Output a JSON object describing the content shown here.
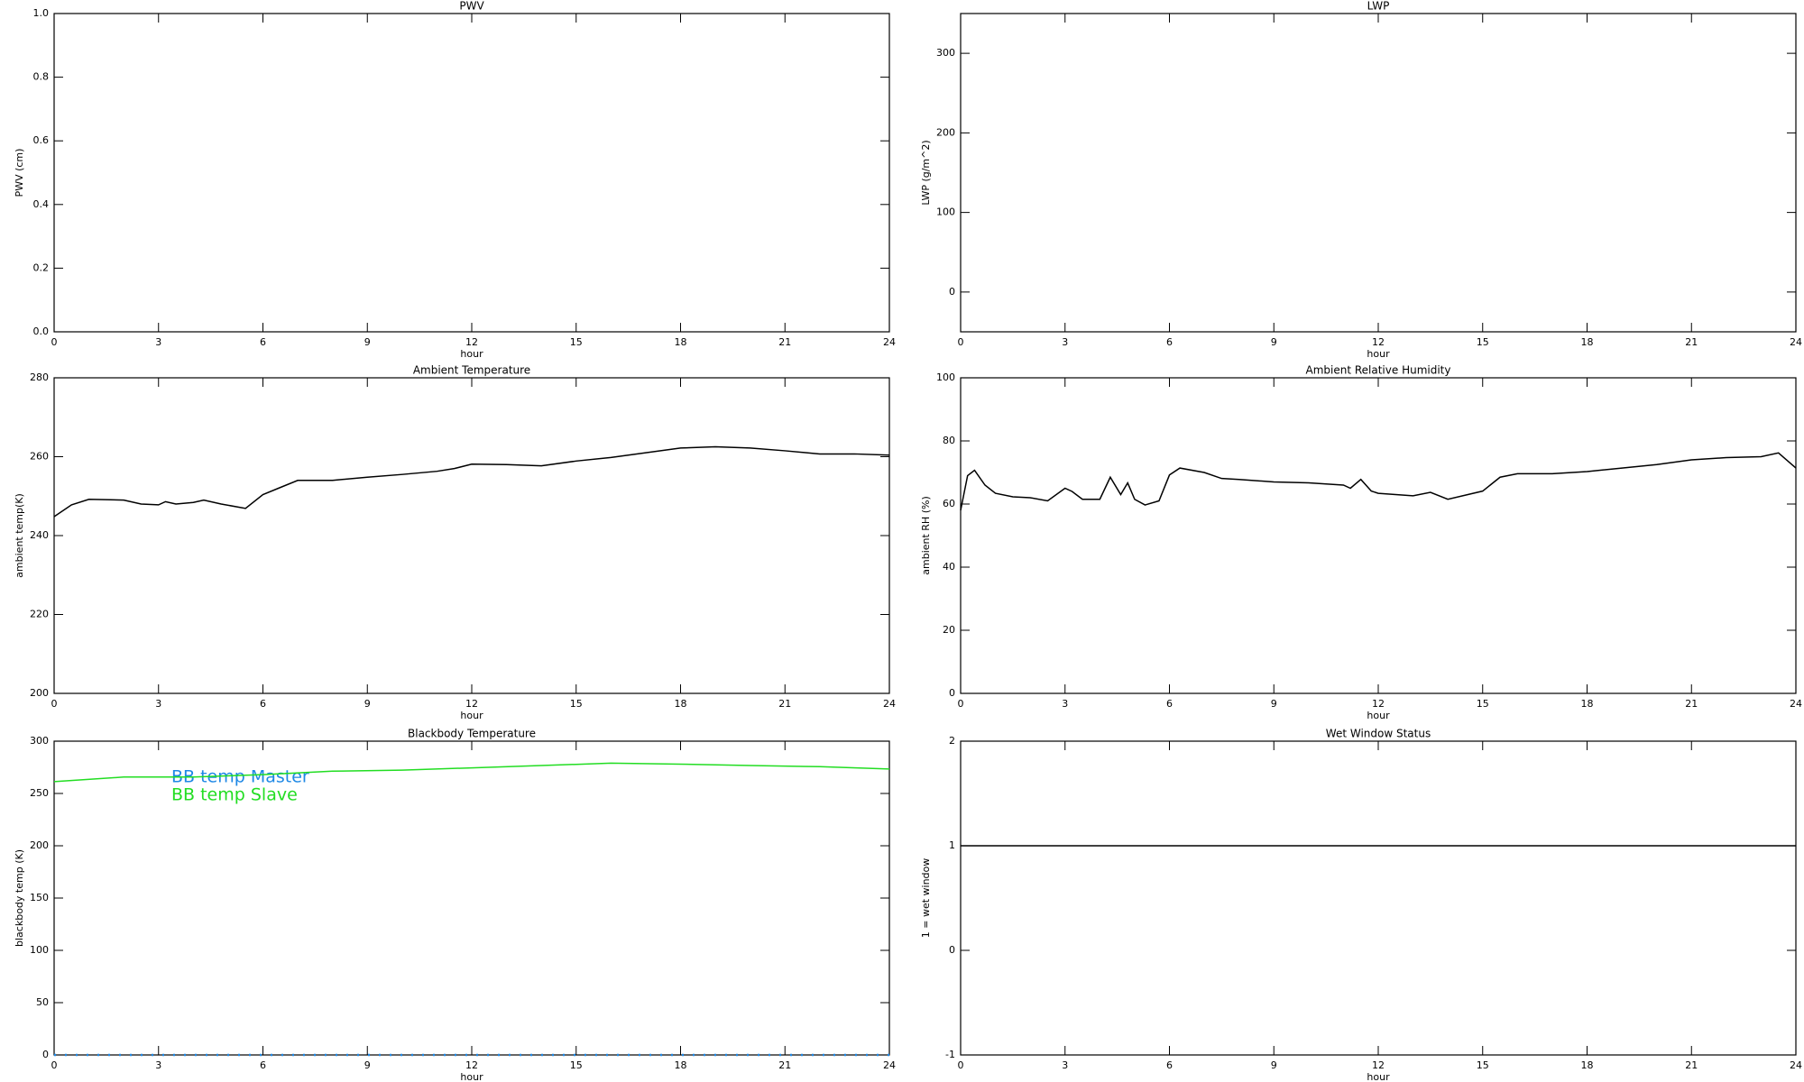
{
  "chart_data": [
    {
      "type": "line",
      "title": "PWV",
      "xlabel": "hour",
      "ylabel": "PWV (cm)",
      "xlim": [
        0,
        24
      ],
      "xticks": [
        0,
        3,
        6,
        9,
        12,
        15,
        18,
        21,
        24
      ],
      "ylim": [
        0,
        1
      ],
      "yticks": [
        {
          "value": 0,
          "label": "0.0"
        },
        0.2,
        0.4,
        0.6,
        0.8,
        {
          "value": 1,
          "label": "1.0"
        }
      ],
      "series": []
    },
    {
      "type": "line",
      "title": "LWP",
      "xlabel": "hour",
      "ylabel": "LWP (g/m^2)",
      "xlim": [
        0,
        24
      ],
      "xticks": [
        0,
        3,
        6,
        9,
        12,
        15,
        18,
        21,
        24
      ],
      "ylim": [
        -50,
        350
      ],
      "yticks": [
        0,
        100,
        200,
        300
      ],
      "series": []
    },
    {
      "type": "line",
      "title": "Ambient Temperature",
      "xlabel": "hour",
      "ylabel": "ambient temp(K)",
      "xlim": [
        0,
        24
      ],
      "xticks": [
        0,
        3,
        6,
        9,
        12,
        15,
        18,
        21,
        24
      ],
      "ylim": [
        200,
        280
      ],
      "yticks": [
        200,
        220,
        240,
        260,
        280
      ],
      "series": [
        {
          "color": "#000000",
          "x": [
            0,
            0.5,
            1,
            2,
            2.5,
            3,
            3.2,
            3.5,
            4,
            4.3,
            4.8,
            5.5,
            6,
            6.5,
            7,
            8,
            9,
            10,
            11,
            11.5,
            12,
            13,
            14,
            15,
            16,
            17,
            18,
            19,
            20,
            21,
            22,
            23,
            24
          ],
          "values": [
            244.8,
            247.8,
            249.2,
            249,
            248,
            247.8,
            248.6,
            248,
            248.4,
            249,
            248,
            246.9,
            250.4,
            252.2,
            254,
            254,
            254.8,
            255.5,
            256.3,
            257,
            258.1,
            258,
            257.7,
            258.9,
            259.8,
            261,
            262.2,
            262.5,
            262.2,
            261.5,
            260.7,
            260.7,
            260.4
          ]
        }
      ]
    },
    {
      "type": "line",
      "title": "Ambient Relative Humidity",
      "xlabel": "hour",
      "ylabel": "ambient RH (%)",
      "xlim": [
        0,
        24
      ],
      "xticks": [
        0,
        3,
        6,
        9,
        12,
        15,
        18,
        21,
        24
      ],
      "ylim": [
        0,
        100
      ],
      "yticks": [
        0,
        20,
        40,
        60,
        80,
        100
      ],
      "series": [
        {
          "color": "#000000",
          "x": [
            0,
            0.2,
            0.4,
            0.7,
            1,
            1.5,
            2,
            2.5,
            3,
            3.2,
            3.5,
            4,
            4.3,
            4.6,
            4.8,
            5,
            5.3,
            5.7,
            6,
            6.3,
            7,
            7.5,
            8,
            9,
            10,
            11,
            11.2,
            11.5,
            11.8,
            12,
            13,
            13.5,
            14,
            15,
            15.5,
            16,
            17,
            18,
            19,
            20,
            21,
            22,
            23,
            23.5,
            24
          ],
          "values": [
            58,
            69,
            70.7,
            66,
            63.4,
            62.3,
            62,
            61,
            65,
            64,
            61.5,
            61.5,
            68.5,
            63,
            66.7,
            61.5,
            59.7,
            61,
            69.2,
            71.4,
            70,
            68.1,
            67.8,
            67,
            66.7,
            66,
            65,
            67.8,
            64.1,
            63.4,
            62.6,
            63.7,
            61.5,
            64.1,
            68.5,
            69.6,
            69.6,
            70.3,
            71.4,
            72.5,
            74,
            74.7,
            75,
            76.2,
            71.4
          ]
        }
      ]
    },
    {
      "type": "line",
      "title": "Blackbody Temperature",
      "xlabel": "hour",
      "ylabel": "blackbody temp (K)",
      "xlim": [
        0,
        24
      ],
      "xticks": [
        0,
        3,
        6,
        9,
        12,
        15,
        18,
        21,
        24
      ],
      "ylim": [
        0,
        300
      ],
      "yticks": [
        0,
        50,
        100,
        150,
        200,
        250,
        300
      ],
      "series": [
        {
          "name": "BB temp Master",
          "color": "#1e88e5",
          "linestyle": "dotted",
          "x": [
            0,
            24
          ],
          "values": [
            0,
            0
          ]
        },
        {
          "name": "BB temp Slave",
          "color": "#22dd22",
          "x": [
            0,
            2,
            4,
            6,
            8,
            10,
            12,
            14,
            16,
            18,
            20,
            22,
            24
          ],
          "values": [
            261.3,
            265.7,
            265.7,
            268,
            271.3,
            272.3,
            274.5,
            276.7,
            279,
            278,
            276.7,
            275.6,
            273.4
          ]
        }
      ]
    },
    {
      "type": "line",
      "title": "Wet Window Status",
      "xlabel": "hour",
      "ylabel": "1 = wet window",
      "xlim": [
        0,
        24
      ],
      "xticks": [
        0,
        3,
        6,
        9,
        12,
        15,
        18,
        21,
        24
      ],
      "ylim": [
        -1,
        2
      ],
      "yticks": [
        -1,
        0,
        1,
        2
      ],
      "series": [
        {
          "color": "#000000",
          "x": [
            0,
            24
          ],
          "values": [
            1,
            1
          ]
        }
      ]
    }
  ]
}
